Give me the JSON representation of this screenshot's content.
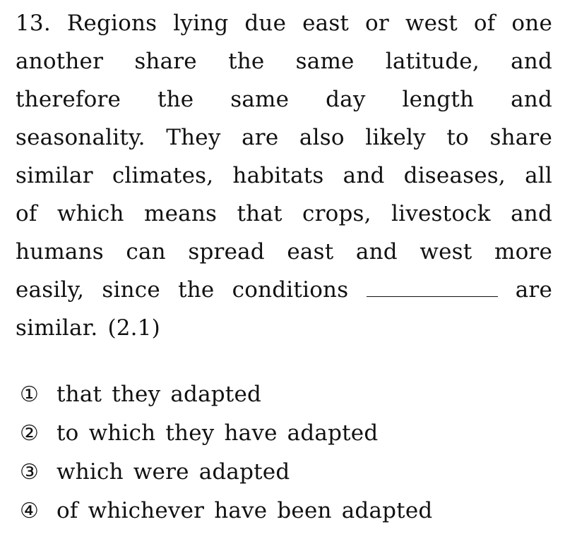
{
  "question": {
    "number": "13.",
    "lines": [
      "Regions lying due east or west of one",
      "another share the same latitude, and",
      "therefore the same day length and",
      "seasonality. They are also likely to share",
      "similar climates, habitats and diseases, all",
      "of which means that crops, livestock and",
      "humans can spread east and west more"
    ],
    "blank_before": "easily, since the conditions",
    "blank_after": "are",
    "final_line": "similar. (2.1)"
  },
  "choices": [
    {
      "marker": "①",
      "text": "that they adapted"
    },
    {
      "marker": "②",
      "text": "to which they have adapted"
    },
    {
      "marker": "③",
      "text": "which were adapted"
    },
    {
      "marker": "④",
      "text": "of whichever have been adapted"
    }
  ]
}
